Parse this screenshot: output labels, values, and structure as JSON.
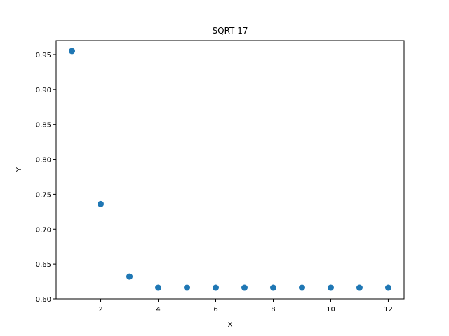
{
  "chart_data": {
    "type": "scatter",
    "title": "SQRT 17",
    "xlabel": "X",
    "ylabel": "Y",
    "xlim": [
      0.45,
      12.55
    ],
    "ylim": [
      0.6,
      0.97
    ],
    "xticks": [
      2,
      4,
      6,
      8,
      10,
      12
    ],
    "xtick_labels": [
      "2",
      "4",
      "6",
      "8",
      "10",
      "12"
    ],
    "yticks": [
      0.6,
      0.65,
      0.7,
      0.75,
      0.8,
      0.85,
      0.9,
      0.95
    ],
    "ytick_labels": [
      "0.60",
      "0.65",
      "0.70",
      "0.75",
      "0.80",
      "0.85",
      "0.90",
      "0.95"
    ],
    "grid": false,
    "marker_color": "#1f77b4",
    "series": [
      {
        "x": [
          1,
          2,
          3,
          4,
          5,
          6,
          7,
          8,
          9,
          10,
          11,
          12
        ],
        "y": [
          0.955,
          0.736,
          0.632,
          0.616,
          0.616,
          0.616,
          0.616,
          0.616,
          0.616,
          0.616,
          0.616,
          0.616
        ]
      }
    ]
  }
}
